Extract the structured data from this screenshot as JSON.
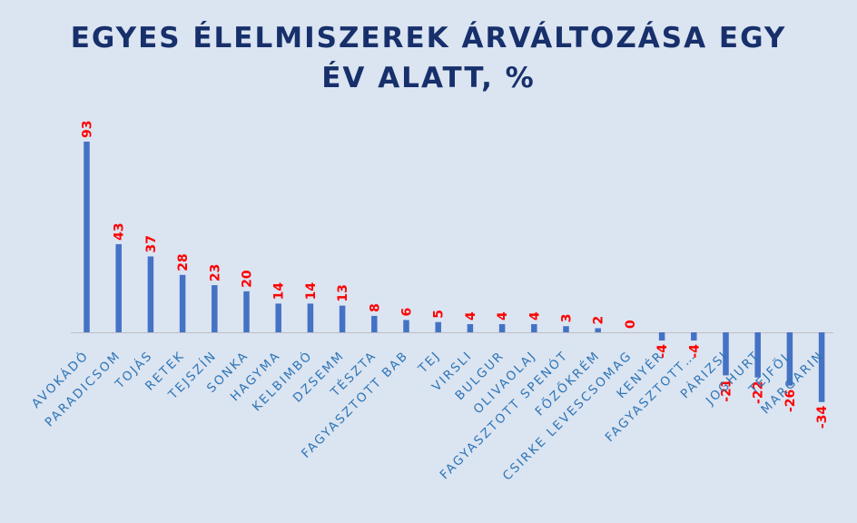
{
  "chart_data": {
    "type": "bar",
    "title_lines": [
      "EGYES ÉLELMISZEREK ÁRVÁLTOZÁSA EGY",
      "ÉV ALATT, %"
    ],
    "categories": [
      "AVOKÁDÓ",
      "PARADICSOM",
      "TOJÁS",
      "RETEK",
      "TEJSZÍN",
      "SONKA",
      "HAGYMA",
      "KELBIMBÓ",
      "DZSEMM",
      "TÉSZTA",
      "FAGYASZTOTT BAB",
      "TEJ",
      "VIRSLI",
      "BULGUR",
      "OLIVAOLAJ",
      "FAGYASZTOTT SPENÓT",
      "FŐZŐKRÉM",
      "CSIRKE LEVESCSOMAG",
      "KENYÉR",
      "FAGYASZTOTT…",
      "PÁRIZSI",
      "JOGHURT",
      "TEJFÖL",
      "MARGARIN"
    ],
    "series": [
      {
        "values": [
          93,
          43,
          37,
          28,
          23,
          20,
          14,
          14,
          13,
          8,
          6,
          5,
          4,
          4,
          4,
          3,
          2,
          0,
          -4,
          -4,
          -21,
          -22,
          -26,
          -34
        ]
      }
    ],
    "data_labels": [
      "93",
      "43",
      "37",
      "28",
      "23",
      "20",
      "14",
      "14",
      "13",
      "8",
      "6",
      "5",
      "4",
      "4",
      "4",
      "3",
      "2",
      "0",
      "-4",
      "-4",
      "-21",
      "-22",
      "-26",
      "-34"
    ],
    "ylim": [
      -34,
      93
    ],
    "grid": false,
    "legend": "none",
    "colors": {
      "bar": "#4472c4",
      "data_label": "#ff0000",
      "category_label": "#2e75b6",
      "title": "#17306b",
      "background": "#dbe4f1",
      "axis": "#bfbfbf"
    }
  }
}
